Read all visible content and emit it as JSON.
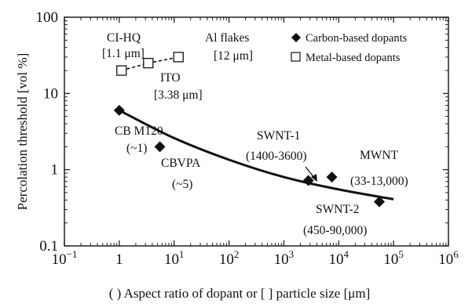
{
  "chart_data": {
    "type": "scatter",
    "xlabel": "( ) Aspect ratio of dopant or [ ] particle size [μm]",
    "ylabel": "Percolation threshold [vol %]",
    "xscale": "log",
    "yscale": "log",
    "xlim": [
      0.1,
      1000000
    ],
    "ylim": [
      0.1,
      100
    ],
    "x_ticks": [
      {
        "value": 0.1,
        "base": "10",
        "exp": "−1"
      },
      {
        "value": 1,
        "base": "1",
        "exp": ""
      },
      {
        "value": 10,
        "base": "10",
        "exp": "1"
      },
      {
        "value": 100,
        "base": "10",
        "exp": "2"
      },
      {
        "value": 1000,
        "base": "10",
        "exp": "3"
      },
      {
        "value": 10000,
        "base": "10",
        "exp": "4"
      },
      {
        "value": 100000,
        "base": "10",
        "exp": "5"
      },
      {
        "value": 1000000,
        "base": "10",
        "exp": "6"
      }
    ],
    "y_ticks": [
      {
        "value": 0.1,
        "label": "0.1"
      },
      {
        "value": 1,
        "label": "1"
      },
      {
        "value": 10,
        "label": "10"
      },
      {
        "value": 100,
        "label": "100"
      }
    ],
    "grid": false,
    "legend_position": "top-right",
    "series": [
      {
        "name": "Carbon-based dopants",
        "marker": "filled-diamond",
        "points": [
          {
            "x": 1,
            "y": 6
          },
          {
            "x": 5.5,
            "y": 2
          },
          {
            "x": 2800,
            "y": 0.72
          },
          {
            "x": 7500,
            "y": 0.8
          },
          {
            "x": 55000,
            "y": 0.38
          }
        ]
      },
      {
        "name": "Metal-based dopants",
        "marker": "open-square",
        "points": [
          {
            "x": 1.1,
            "y": 20
          },
          {
            "x": 3.38,
            "y": 25
          },
          {
            "x": 12,
            "y": 30
          }
        ]
      }
    ],
    "fit_curve": [
      {
        "x": 1,
        "y": 6
      },
      {
        "x": 10,
        "y": 2.6
      },
      {
        "x": 100,
        "y": 1.35
      },
      {
        "x": 1000,
        "y": 0.8
      },
      {
        "x": 10000,
        "y": 0.55
      },
      {
        "x": 100000,
        "y": 0.41
      }
    ],
    "dashed_connector": [
      {
        "x": 1.1,
        "y": 20
      },
      {
        "x": 3.38,
        "y": 25
      },
      {
        "x": 12,
        "y": 30
      }
    ],
    "annotations": [
      {
        "id": "cihq-name",
        "text": "CI-HQ"
      },
      {
        "id": "cihq-size",
        "text": "[1.1 μm]"
      },
      {
        "id": "ito-name",
        "text": "ITO"
      },
      {
        "id": "ito-size",
        "text": "[3.38 μm]"
      },
      {
        "id": "al-name",
        "text": "Al flakes"
      },
      {
        "id": "al-size",
        "text": "[12 μm]"
      },
      {
        "id": "cbm-name",
        "text": "CB M120"
      },
      {
        "id": "cbm-ratio",
        "text": "(~1)"
      },
      {
        "id": "cbv-name",
        "text": "CBVPA"
      },
      {
        "id": "cbv-ratio",
        "text": "(~5)"
      },
      {
        "id": "swnt1-name",
        "text": "SWNT-1"
      },
      {
        "id": "swnt1-ratio",
        "text": "(1400-3600)"
      },
      {
        "id": "mwnt-name",
        "text": "MWNT"
      },
      {
        "id": "mwnt-ratio",
        "text": "(33-13,000)"
      },
      {
        "id": "swnt2-name",
        "text": "SWNT-2"
      },
      {
        "id": "swnt2-ratio",
        "text": "(450-90,000)"
      }
    ]
  }
}
